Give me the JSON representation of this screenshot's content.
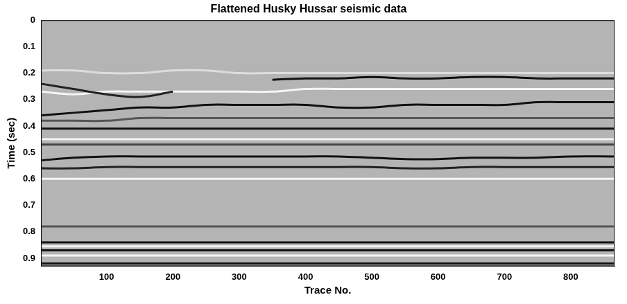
{
  "chart_data": {
    "type": "line",
    "title": "Flattened Husky Hussar seismic data",
    "x_label": "Trace No.",
    "y_label": "Time (sec)",
    "x": [
      1,
      50,
      100,
      150,
      200,
      250,
      300,
      350,
      400,
      450,
      500,
      550,
      600,
      650,
      700,
      750,
      800,
      866
    ],
    "xlim": [
      1,
      866
    ],
    "xticks": [
      100,
      200,
      300,
      400,
      500,
      600,
      700,
      800
    ],
    "ylim": [
      0,
      0.93
    ],
    "yticks": [
      0,
      0.1,
      0.2,
      0.3,
      0.4,
      0.5,
      0.6,
      0.7,
      0.8,
      0.9
    ],
    "grid": false,
    "series": [
      {
        "color": "#dddddd",
        "values": [
          0.19,
          0.19,
          0.2,
          0.2,
          0.19,
          0.19,
          0.2,
          0.2,
          0.2,
          0.2,
          0.2,
          0.2,
          0.2,
          0.2,
          0.2,
          0.2,
          0.2,
          0.2
        ]
      },
      {
        "color": "#111111",
        "values": [
          null,
          null,
          null,
          null,
          null,
          null,
          null,
          0.225,
          0.22,
          0.22,
          0.215,
          0.22,
          0.22,
          0.215,
          0.215,
          0.22,
          0.22,
          0.22
        ]
      },
      {
        "color": "#222222",
        "values": [
          0.24,
          0.26,
          0.28,
          0.29,
          0.27,
          null,
          null,
          null,
          null,
          null,
          null,
          null,
          null,
          null,
          null,
          null,
          null,
          null
        ]
      },
      {
        "color": "#f5f5f5",
        "values": [
          0.27,
          0.28,
          0.27,
          0.27,
          0.27,
          0.27,
          0.27,
          0.27,
          0.26,
          0.26,
          0.26,
          0.26,
          0.26,
          0.26,
          0.26,
          0.26,
          0.26,
          0.26
        ]
      },
      {
        "color": "#111111",
        "values": [
          0.36,
          0.35,
          0.34,
          0.33,
          0.33,
          0.32,
          0.32,
          0.32,
          0.32,
          0.33,
          0.33,
          0.32,
          0.32,
          0.32,
          0.32,
          0.31,
          0.31,
          0.31
        ]
      },
      {
        "color": "#555555",
        "values": [
          0.38,
          0.38,
          0.38,
          0.37,
          0.37,
          0.37,
          0.37,
          0.37,
          0.37,
          0.37,
          0.37,
          0.37,
          0.37,
          0.37,
          0.37,
          0.37,
          0.37,
          0.37
        ]
      },
      {
        "color": "#111111",
        "values": [
          0.41,
          0.41,
          0.41,
          0.41,
          0.41,
          0.41,
          0.41,
          0.41,
          0.41,
          0.41,
          0.41,
          0.41,
          0.41,
          0.41,
          0.41,
          0.41,
          0.41,
          0.41
        ]
      },
      {
        "color": "#f5f5f5",
        "values": [
          0.45,
          0.45,
          0.45,
          0.45,
          0.45,
          0.45,
          0.45,
          0.45,
          0.45,
          0.45,
          0.45,
          0.45,
          0.45,
          0.45,
          0.45,
          0.45,
          0.45,
          0.45
        ]
      },
      {
        "color": "#444444",
        "values": [
          0.47,
          0.47,
          0.47,
          0.47,
          0.47,
          0.47,
          0.47,
          0.47,
          0.47,
          0.47,
          0.47,
          0.47,
          0.47,
          0.47,
          0.47,
          0.47,
          0.47,
          0.47
        ]
      },
      {
        "color": "#111111",
        "values": [
          0.53,
          0.52,
          0.515,
          0.515,
          0.515,
          0.515,
          0.515,
          0.515,
          0.515,
          0.515,
          0.52,
          0.525,
          0.525,
          0.52,
          0.52,
          0.52,
          0.515,
          0.515
        ]
      },
      {
        "color": "#222222",
        "values": [
          0.56,
          0.56,
          0.555,
          0.555,
          0.555,
          0.555,
          0.555,
          0.555,
          0.555,
          0.555,
          0.555,
          0.56,
          0.56,
          0.555,
          0.555,
          0.555,
          0.555,
          0.555
        ]
      },
      {
        "color": "#f5f5f5",
        "values": [
          0.6,
          0.6,
          0.6,
          0.6,
          0.6,
          0.6,
          0.6,
          0.6,
          0.6,
          0.6,
          0.6,
          0.6,
          0.6,
          0.6,
          0.6,
          0.6,
          0.6,
          0.6
        ]
      },
      {
        "color": "#555555",
        "values": [
          0.78,
          0.78,
          0.78,
          0.78,
          0.78,
          0.78,
          0.78,
          0.78,
          0.78,
          0.78,
          0.78,
          0.78,
          0.78,
          0.78,
          0.78,
          0.78,
          0.78,
          0.78
        ]
      },
      {
        "color": "#111111",
        "values": [
          0.84,
          0.84,
          0.84,
          0.84,
          0.84,
          0.84,
          0.84,
          0.84,
          0.84,
          0.84,
          0.84,
          0.84,
          0.84,
          0.84,
          0.84,
          0.84,
          0.84,
          0.84
        ]
      },
      {
        "color": "#f5f5f5",
        "values": [
          0.855,
          0.855,
          0.855,
          0.855,
          0.855,
          0.855,
          0.855,
          0.855,
          0.855,
          0.855,
          0.855,
          0.855,
          0.855,
          0.855,
          0.855,
          0.855,
          0.855,
          0.855
        ]
      },
      {
        "color": "#111111",
        "values": [
          0.87,
          0.87,
          0.87,
          0.87,
          0.87,
          0.87,
          0.87,
          0.87,
          0.87,
          0.87,
          0.87,
          0.87,
          0.87,
          0.87,
          0.87,
          0.87,
          0.87,
          0.87
        ]
      },
      {
        "color": "#f5f5f5",
        "values": [
          0.89,
          0.89,
          0.89,
          0.89,
          0.89,
          0.89,
          0.89,
          0.89,
          0.89,
          0.89,
          0.89,
          0.89,
          0.89,
          0.89,
          0.89,
          0.89,
          0.89,
          0.89
        ]
      },
      {
        "color": "#111111",
        "values": [
          0.92,
          0.92,
          0.92,
          0.92,
          0.92,
          0.92,
          0.92,
          0.92,
          0.92,
          0.92,
          0.92,
          0.92,
          0.92,
          0.92,
          0.92,
          0.92,
          0.92,
          0.92
        ]
      }
    ]
  }
}
